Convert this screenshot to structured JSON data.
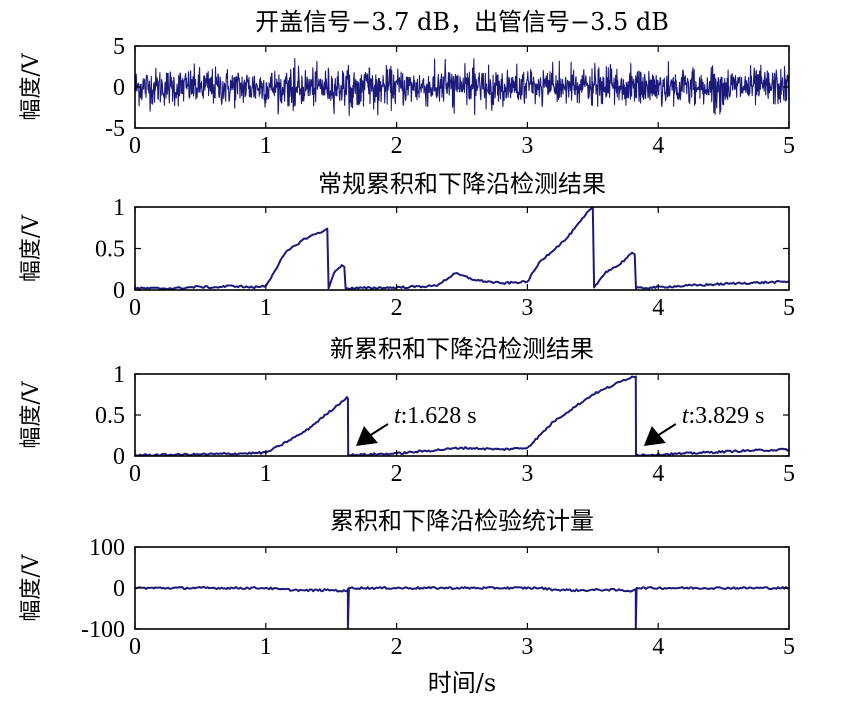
{
  "colors": {
    "series": "#1b1a7a",
    "axis": "#000000",
    "background": "#ffffff"
  },
  "chart_data": [
    {
      "type": "line",
      "title": "开盖信号−3.7 dB，出管信号−3.5 dB",
      "ylabel": "幅度/V",
      "xlabel": "",
      "xlim": [
        0,
        5
      ],
      "ylim": [
        -5,
        5
      ],
      "xticks": [
        "0",
        "1",
        "2",
        "3",
        "4",
        "5"
      ],
      "yticks": [
        "5",
        "0",
        "-5"
      ],
      "grid": false,
      "series": [
        {
          "kind": "noise",
          "x_range": [
            0,
            5
          ],
          "mean": 0,
          "typical_amplitude": 1.5,
          "peak_amplitude": 3.5
        }
      ]
    },
    {
      "type": "line",
      "title": "常规累积和下降沿检测结果",
      "ylabel": "幅度/V",
      "xlabel": "",
      "xlim": [
        0,
        5
      ],
      "ylim": [
        0,
        1
      ],
      "xticks": [
        "0",
        "1",
        "2",
        "3",
        "4",
        "5"
      ],
      "yticks": [
        "1",
        "0.5",
        "0"
      ],
      "grid": false,
      "series": [
        {
          "x": [
            0,
            0.3,
            0.5,
            0.6,
            0.75,
            0.9,
            1.0,
            1.05,
            1.15,
            1.3,
            1.45,
            1.47,
            1.48,
            1.52,
            1.58,
            1.6,
            1.61,
            2.0,
            2.3,
            2.45,
            2.6,
            2.8,
            3.0,
            3.1,
            3.3,
            3.48,
            3.5,
            3.51,
            3.6,
            3.7,
            3.8,
            3.82,
            3.83,
            4.2,
            4.6,
            5.0
          ],
          "y": [
            0.02,
            0.02,
            0.04,
            0.03,
            0.05,
            0.03,
            0.05,
            0.18,
            0.45,
            0.62,
            0.72,
            0.74,
            0.02,
            0.2,
            0.3,
            0.28,
            0.02,
            0.03,
            0.05,
            0.2,
            0.12,
            0.08,
            0.1,
            0.35,
            0.62,
            0.97,
            1.0,
            0.03,
            0.22,
            0.3,
            0.45,
            0.43,
            0.02,
            0.05,
            0.08,
            0.1
          ]
        }
      ]
    },
    {
      "type": "line",
      "title": "新累积和下降沿检测结果",
      "ylabel": "幅度/V",
      "xlabel": "",
      "xlim": [
        0,
        5
      ],
      "ylim": [
        0,
        1
      ],
      "xticks": [
        "0",
        "1",
        "2",
        "3",
        "4",
        "5"
      ],
      "yticks": [
        "1",
        "0.5",
        "0"
      ],
      "grid": false,
      "series": [
        {
          "x": [
            0,
            0.5,
            0.8,
            1.0,
            1.1,
            1.3,
            1.55,
            1.62,
            1.628,
            1.63,
            2.0,
            2.5,
            2.8,
            3.0,
            3.2,
            3.5,
            3.8,
            3.825,
            3.829,
            3.83,
            4.2,
            4.6,
            5.0
          ],
          "y": [
            0.01,
            0.02,
            0.03,
            0.04,
            0.12,
            0.3,
            0.62,
            0.72,
            0.7,
            0.01,
            0.03,
            0.1,
            0.08,
            0.1,
            0.42,
            0.75,
            0.97,
            0.96,
            0.97,
            0.01,
            0.03,
            0.06,
            0.08
          ]
        }
      ],
      "annotations": [
        {
          "x": 1.628,
          "var": "t",
          "text": ":1.628 s"
        },
        {
          "x": 3.829,
          "var": "t",
          "text": ":3.829 s"
        }
      ]
    },
    {
      "type": "line",
      "title": "累积和下降沿检验统计量",
      "ylabel": "幅度/V",
      "xlabel": "时间/s",
      "xlim": [
        0,
        5
      ],
      "ylim": [
        -100,
        100
      ],
      "xticks": [
        "0",
        "1",
        "2",
        "3",
        "4",
        "5"
      ],
      "yticks": [
        "100",
        "0",
        "-100"
      ],
      "grid": false,
      "series": [
        {
          "x": [
            0,
            1.0,
            1.1,
            1.3,
            1.5,
            1.62,
            1.628,
            1.628,
            1.635,
            3.1,
            3.2,
            3.4,
            3.6,
            3.8,
            3.829,
            3.829,
            3.835,
            5.0
          ],
          "y": [
            0,
            0,
            -3,
            -6,
            -5,
            -8,
            -3,
            -100,
            0,
            0,
            -4,
            -6,
            -4,
            -7,
            -3,
            -100,
            0,
            0
          ]
        }
      ]
    }
  ]
}
